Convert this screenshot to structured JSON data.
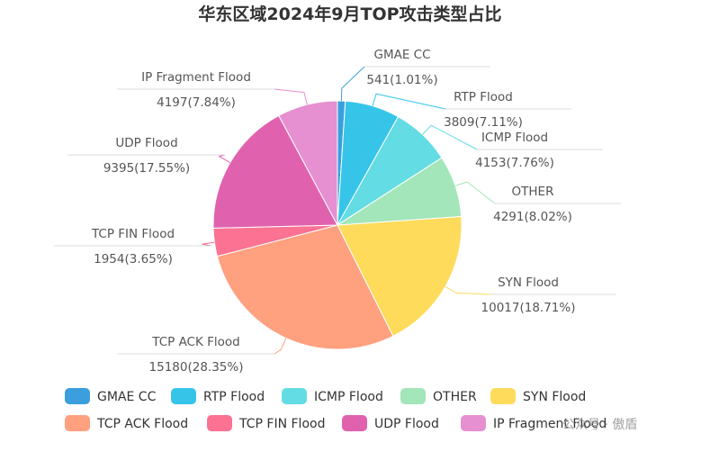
{
  "chart_data": {
    "type": "pie",
    "title": "华东区域2024年9月TOP攻击类型占比",
    "slices": [
      {
        "name": "GMAE CC",
        "value": 541,
        "pct": "1.01%",
        "color": "#3a9fdc"
      },
      {
        "name": "RTP Flood",
        "value": 3809,
        "pct": "7.11%",
        "color": "#36c5e9"
      },
      {
        "name": "ICMP Flood",
        "value": 4153,
        "pct": "7.76%",
        "color": "#63dce4"
      },
      {
        "name": "OTHER",
        "value": 4291,
        "pct": "8.02%",
        "color": "#a3e6b9"
      },
      {
        "name": "SYN Flood",
        "value": 10017,
        "pct": "18.71%",
        "color": "#ffdb5c"
      },
      {
        "name": "TCP ACK Flood",
        "value": 15180,
        "pct": "28.35%",
        "color": "#ffa07f"
      },
      {
        "name": "TCP FIN Flood",
        "value": 1954,
        "pct": "3.65%",
        "color": "#fc7293"
      },
      {
        "name": "UDP Flood",
        "value": 9395,
        "pct": "17.55%",
        "color": "#e062ae"
      },
      {
        "name": "IP Fragment Flood",
        "value": 4197,
        "pct": "7.84%",
        "color": "#e690d1"
      }
    ],
    "legend_position": "bottom"
  },
  "watermark": "公众号 · 傲盾"
}
